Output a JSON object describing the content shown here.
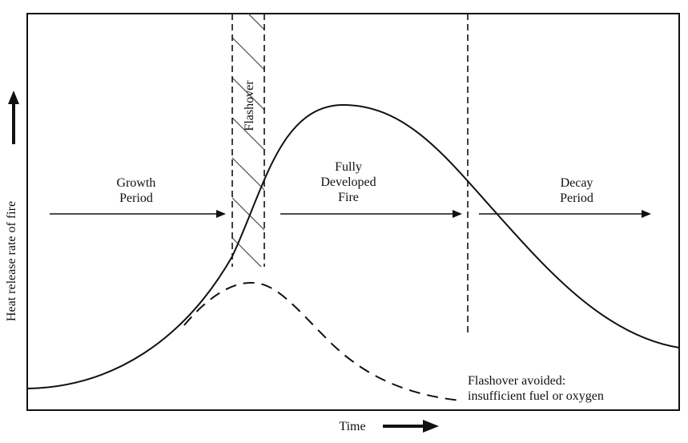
{
  "diagram": {
    "axes": {
      "x_label": "Time",
      "y_label": "Heat release rate of fire"
    },
    "phases": {
      "growth": [
        "Growth",
        "Period"
      ],
      "flashover": "Flashover",
      "fully_developed": [
        "Fully",
        "Developed",
        "Fire"
      ],
      "decay": [
        "Decay",
        "Period"
      ]
    },
    "annotation": [
      "Flashover avoided:",
      "insufficient fuel or oxygen"
    ],
    "curves": {
      "main_style": "solid",
      "avoided_style": "dashed"
    },
    "colors": {
      "line": "#111111",
      "background": "#ffffff"
    }
  }
}
